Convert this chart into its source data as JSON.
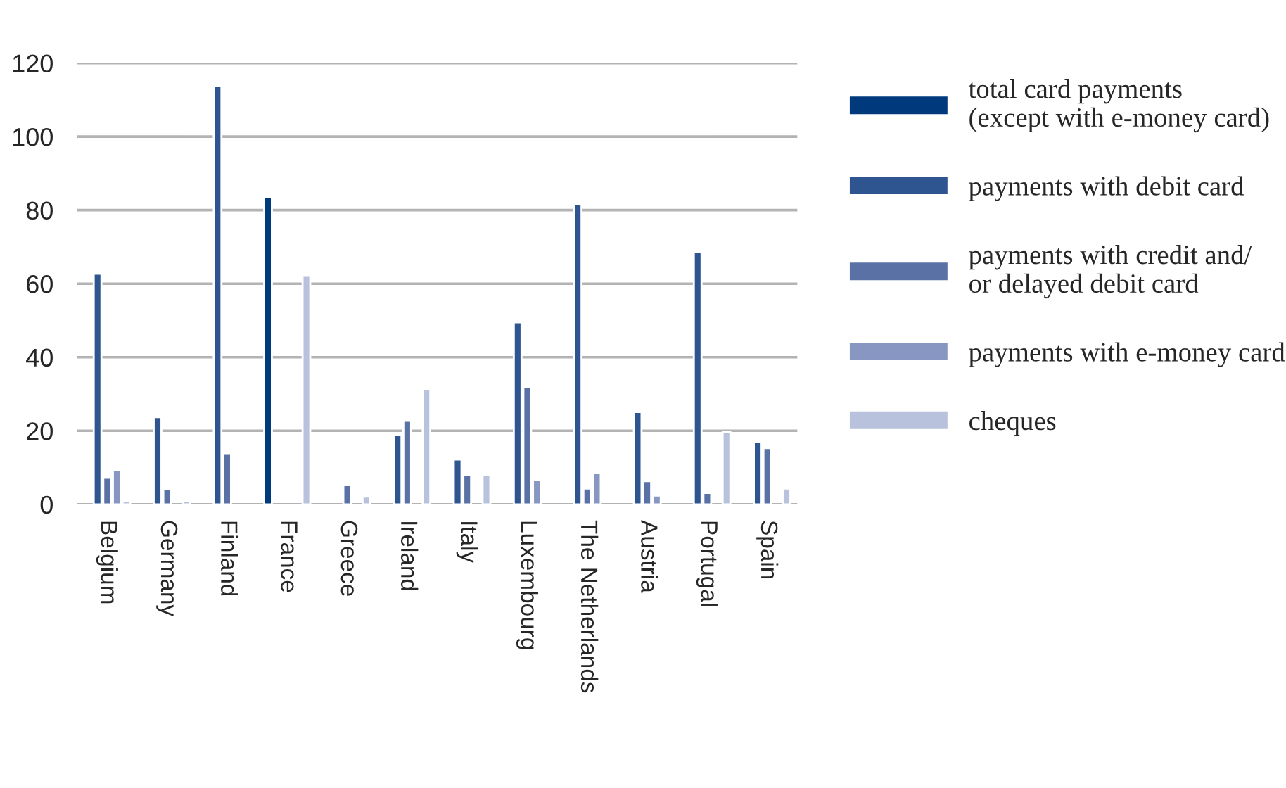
{
  "chart_data": {
    "type": "bar",
    "categories": [
      "Belgium",
      "Germany",
      "Finland",
      "France",
      "Greece",
      "Ireland",
      "Italy",
      "Luxembourg",
      "The Netherlands",
      "Austria",
      "Portugal",
      "Spain"
    ],
    "series": [
      {
        "name": "total card payments\n(except with e-money card)",
        "color": "#003a7d",
        "values": [
          null,
          null,
          null,
          83.5,
          null,
          null,
          null,
          null,
          null,
          null,
          null,
          null
        ]
      },
      {
        "name": "payments with debit card",
        "color": "#2e5590",
        "values": [
          62.7,
          23.7,
          113.8,
          null,
          null,
          18.8,
          12.2,
          49.5,
          81.7,
          25.1,
          68.7,
          16.9
        ]
      },
      {
        "name": "payments with credit and/\nor delayed debit card",
        "color": "#5a71a6",
        "values": [
          7.2,
          4.1,
          13.9,
          null,
          5.2,
          22.7,
          7.9,
          31.8,
          4.3,
          6.3,
          3.1,
          15.3
        ]
      },
      {
        "name": "payments with e-money card",
        "color": "#8797c2",
        "values": [
          9.2,
          null,
          null,
          null,
          null,
          null,
          null,
          6.7,
          8.6,
          2.4,
          null,
          null
        ]
      },
      {
        "name": "cheques",
        "color": "#b9c2dc",
        "values": [
          0.9,
          1.0,
          null,
          62.3,
          2.1,
          31.4,
          7.9,
          null,
          null,
          null,
          19.6,
          4.3
        ]
      }
    ],
    "ylim": [
      0,
      120
    ],
    "yticks": [
      0,
      20,
      40,
      60,
      80,
      100,
      120
    ],
    "grid": "y",
    "legend": "right"
  }
}
